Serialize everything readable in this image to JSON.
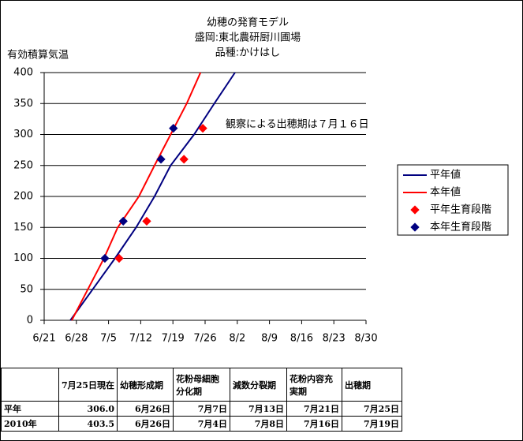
{
  "chart_data": {
    "type": "line",
    "title": [
      "幼穂の発育モデル",
      "盛岡:東北農研厨川圃場",
      "品種:かけはし"
    ],
    "y_label": "有効積算気温",
    "xlim": [
      172,
      242
    ],
    "xticks": [
      {
        "value": 172,
        "label": "6/21"
      },
      {
        "value": 179,
        "label": "6/28"
      },
      {
        "value": 186,
        "label": "7/5"
      },
      {
        "value": 193,
        "label": "7/12"
      },
      {
        "value": 200,
        "label": "7/19"
      },
      {
        "value": 207,
        "label": "7/26"
      },
      {
        "value": 214,
        "label": "8/2"
      },
      {
        "value": 221,
        "label": "8/9"
      },
      {
        "value": 228,
        "label": "8/16"
      },
      {
        "value": 235,
        "label": "8/23"
      },
      {
        "value": 242,
        "label": "8/30"
      }
    ],
    "ylim": [
      0,
      400
    ],
    "yticks": [
      0,
      50,
      100,
      150,
      200,
      250,
      300,
      350,
      400
    ],
    "grid": true,
    "legend": "right",
    "annotation": "観察による出穂期は７月１６日",
    "series": [
      {
        "name": "平年値",
        "color": "#000080",
        "style": "line",
        "x": [
          177.7,
          187.4,
          192,
          196,
          199.5,
          204.6,
          209,
          213.5
        ],
        "values": [
          0,
          100,
          150,
          200,
          250,
          300,
          350,
          400
        ]
      },
      {
        "name": "本年値",
        "color": "#ff0000",
        "style": "line",
        "x": [
          178,
          185,
          188,
          192.6,
          196,
          199.5,
          203,
          206
        ],
        "values": [
          0,
          100,
          150,
          200,
          250,
          300,
          350,
          400
        ]
      },
      {
        "name": "平年生育段階",
        "color": "#ff0000",
        "style": "marker",
        "x": [
          188.3,
          194.3,
          202.4,
          206.5
        ],
        "values": [
          100,
          160,
          260,
          310
        ]
      },
      {
        "name": "本年生育段階",
        "color": "#000080",
        "style": "marker",
        "x": [
          185.2,
          189.2,
          197.4,
          200.1
        ],
        "values": [
          100,
          160,
          260,
          310
        ]
      }
    ]
  },
  "table": {
    "header": [
      "7月25日現在",
      "幼穂形成期",
      "花粉母細胞分化期",
      "減数分裂期",
      "花粉内容充実期",
      "出穂期"
    ],
    "rows": [
      [
        "平年",
        "306.0",
        "6月26日",
        "7月7日",
        "7月13日",
        "7月21日",
        "7月25日"
      ],
      [
        "2010年",
        "403.5",
        "6月26日",
        "7月4日",
        "7月8日",
        "7月16日",
        "7月19日"
      ]
    ]
  }
}
